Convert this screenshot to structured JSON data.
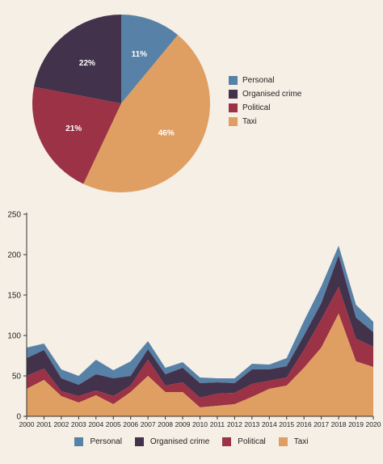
{
  "chart_data": [
    {
      "type": "pie",
      "slices": [
        {
          "name": "Personal",
          "value": 11,
          "label": "11%"
        },
        {
          "name": "Taxi",
          "value": 46,
          "label": "46%"
        },
        {
          "name": "Political",
          "value": 21,
          "label": "21%"
        },
        {
          "name": "Organised crime",
          "value": 22,
          "label": "22%"
        }
      ],
      "legend": [
        "Personal",
        "Organised crime",
        "Political",
        "Taxi"
      ],
      "legend_position": "right",
      "colors": {
        "Personal": "#5781a6",
        "Organised crime": "#43324b",
        "Political": "#9b3246",
        "Taxi": "#e09f62"
      }
    },
    {
      "type": "area",
      "stacked": true,
      "x": [
        "2000",
        "2001",
        "2002",
        "2003",
        "2004",
        "2005",
        "2006",
        "2007",
        "2008",
        "2009",
        "2010",
        "2011",
        "2012",
        "2013",
        "2014",
        "2015",
        "2016",
        "2017",
        "2018",
        "2019",
        "2020"
      ],
      "series": [
        {
          "name": "Taxi",
          "values": [
            34,
            45,
            25,
            17,
            26,
            15,
            30,
            50,
            30,
            30,
            11,
            13,
            15,
            24,
            34,
            38,
            60,
            85,
            127,
            68,
            61
          ]
        },
        {
          "name": "Political",
          "values": [
            16,
            14,
            6,
            8,
            6,
            10,
            8,
            20,
            8,
            12,
            12,
            15,
            14,
            16,
            10,
            10,
            22,
            35,
            33,
            28,
            25
          ]
        },
        {
          "name": "Organised crime",
          "values": [
            22,
            23,
            16,
            14,
            20,
            22,
            12,
            13,
            14,
            18,
            18,
            14,
            12,
            18,
            14,
            14,
            18,
            20,
            39,
            26,
            18
          ]
        },
        {
          "name": "Personal",
          "values": [
            13,
            8,
            11,
            11,
            18,
            10,
            18,
            10,
            8,
            7,
            7,
            5,
            6,
            7,
            6,
            10,
            18,
            21,
            12,
            16,
            13
          ]
        }
      ],
      "ylim": [
        0,
        250
      ],
      "yticks": [
        0,
        50,
        100,
        150,
        200,
        250
      ],
      "grid": false,
      "legend": [
        "Personal",
        "Organised crime",
        "Political",
        "Taxi"
      ],
      "legend_position": "bottom",
      "colors": {
        "Personal": "#5781a6",
        "Organised crime": "#43324b",
        "Political": "#9b3246",
        "Taxi": "#e09f62"
      }
    }
  ]
}
